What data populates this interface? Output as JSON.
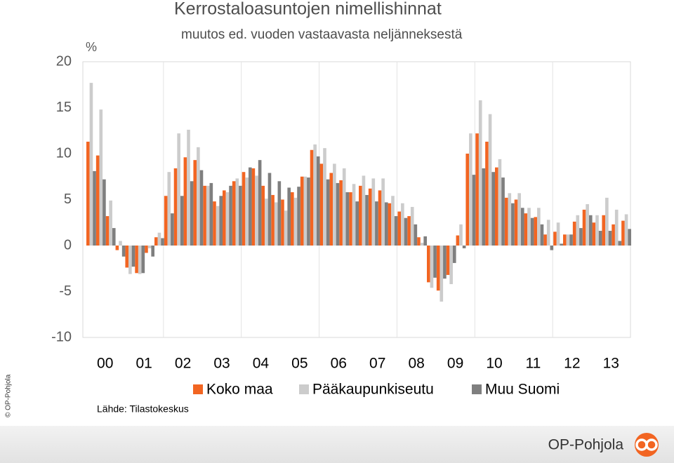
{
  "chart_data": {
    "type": "bar",
    "title": "Kerrostaloasuntojen nimellishinnat",
    "subtitle": "muutos ed. vuoden vastaavasta neljänneksestä",
    "y_unit": "%",
    "categories": [
      "00",
      null,
      null,
      null,
      "01",
      null,
      null,
      null,
      "02",
      null,
      null,
      null,
      "03",
      null,
      null,
      null,
      "04",
      null,
      null,
      null,
      "05",
      null,
      null,
      null,
      "06",
      null,
      null,
      null,
      "07",
      null,
      null,
      null,
      "08",
      null,
      null,
      null,
      "09",
      null,
      null,
      null,
      "10",
      null,
      null,
      null,
      "11",
      null,
      null,
      null,
      "12",
      null,
      null,
      null,
      "13",
      null,
      null,
      null
    ],
    "series": [
      {
        "name": "Koko maa",
        "color": "#f26522",
        "values": [
          11.3,
          9.8,
          3.2,
          -0.5,
          -2.4,
          -3.0,
          -0.8,
          0.9,
          5.4,
          8.4,
          9.6,
          9.3,
          6.5,
          4.8,
          6.0,
          7.0,
          8.0,
          8.4,
          6.5,
          5.5,
          5.0,
          5.8,
          7.5,
          10.4,
          8.9,
          7.9,
          7.1,
          5.8,
          6.5,
          6.2,
          6.0,
          4.6,
          3.7,
          3.2,
          0.9,
          -4.0,
          -4.9,
          -3.2,
          1.1,
          10.0,
          12.2,
          11.3,
          8.5,
          5.2,
          5.0,
          3.5,
          3.1,
          1.2,
          1.5,
          1.2,
          2.6,
          3.9,
          2.5,
          3.3,
          2.3,
          2.7
        ]
      },
      {
        "name": "Pääkaupunkiseutu",
        "color": "#cccccc",
        "values": [
          17.7,
          14.8,
          4.9,
          0.5,
          -3.1,
          -3.1,
          -0.3,
          1.4,
          8.0,
          12.2,
          12.6,
          10.7,
          6.5,
          4.3,
          5.8,
          7.3,
          7.4,
          7.6,
          5.1,
          4.7,
          3.8,
          5.2,
          7.5,
          11.0,
          10.6,
          8.9,
          8.4,
          6.7,
          7.6,
          7.3,
          7.3,
          5.4,
          4.6,
          4.2,
          0.3,
          -4.6,
          -6.1,
          -4.2,
          2.3,
          12.2,
          15.8,
          14.3,
          9.4,
          5.7,
          5.7,
          4.1,
          4.1,
          2.8,
          2.5,
          1.2,
          3.3,
          4.5,
          3.3,
          5.2,
          3.9,
          3.4
        ]
      },
      {
        "name": "Muu Suomi",
        "color": "#7f7f7f",
        "values": [
          8.1,
          7.2,
          1.9,
          -1.2,
          -2.3,
          -3.0,
          -1.2,
          0.8,
          3.5,
          5.4,
          7.0,
          8.2,
          6.8,
          5.4,
          6.5,
          6.5,
          8.5,
          9.3,
          7.9,
          7.0,
          6.3,
          6.4,
          7.4,
          9.7,
          7.2,
          6.8,
          5.8,
          4.8,
          5.5,
          4.8,
          4.7,
          3.2,
          3.0,
          2.3,
          1.0,
          -3.5,
          -3.6,
          -1.9,
          -0.3,
          7.7,
          8.4,
          8.0,
          7.4,
          4.6,
          4.1,
          3.0,
          2.3,
          -0.5,
          0.2,
          1.2,
          1.9,
          3.3,
          1.6,
          1.6,
          0.5,
          1.8
        ]
      }
    ],
    "ylim": [
      -10,
      20
    ],
    "yticks": [
      -10,
      -5,
      0,
      5,
      10,
      15,
      20
    ],
    "source": "Lähde: Tilastokeskus",
    "copyright": "© OP-Pohjola",
    "brand": "OP-Pohjola"
  }
}
